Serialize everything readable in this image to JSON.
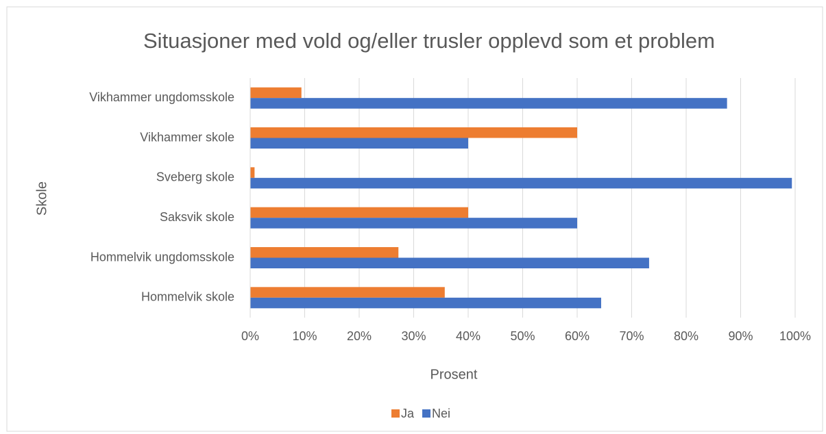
{
  "chart_data": {
    "type": "bar",
    "orientation": "horizontal",
    "title": "Situasjoner med vold og/eller trusler opplevd som et problem",
    "x_label": "Prosent",
    "y_label": "Skole",
    "categories": [
      "Vikhammer ungdomsskole",
      "Vikhammer skole",
      "Sveberg skole",
      "Saksvik skole",
      "Hommelvik ungdomsskole",
      "Hommelvik skole"
    ],
    "series": [
      {
        "name": "Ja",
        "color": "#ed7d31",
        "values": [
          9.4,
          60,
          0.8,
          40,
          27.2,
          35.7
        ]
      },
      {
        "name": "Nei",
        "color": "#4472c4",
        "values": [
          87.5,
          40,
          99.4,
          60,
          73.2,
          64.4
        ]
      }
    ],
    "xlim": [
      0,
      100
    ],
    "xticks": [
      {
        "value": 0,
        "label": "0%"
      },
      {
        "value": 10,
        "label": "10%"
      },
      {
        "value": 20,
        "label": "20%"
      },
      {
        "value": 30,
        "label": "30%"
      },
      {
        "value": 40,
        "label": "40%"
      },
      {
        "value": 50,
        "label": "50%"
      },
      {
        "value": 60,
        "label": "60%"
      },
      {
        "value": 70,
        "label": "70%"
      },
      {
        "value": 80,
        "label": "80%"
      },
      {
        "value": 90,
        "label": "90%"
      },
      {
        "value": 100,
        "label": "100%"
      }
    ],
    "grid": true,
    "legend": "bottom"
  }
}
